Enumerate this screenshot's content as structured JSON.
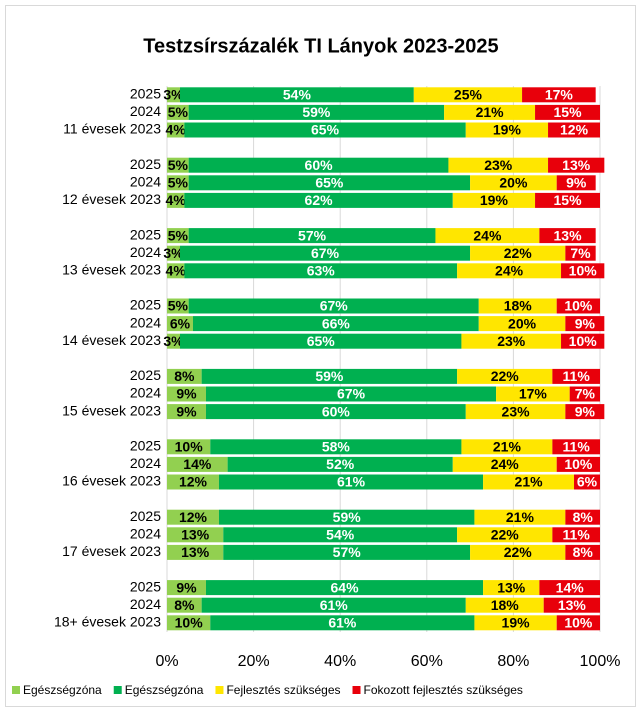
{
  "chart_data": {
    "type": "bar",
    "orientation": "horizontal",
    "stacked": true,
    "title": "Testzsírszázalék TI Lányok 2023-2025",
    "categories": [
      "2025",
      "2024",
      "11 évesek 2023",
      "2025",
      "2024",
      "12 évesek 2023",
      "2025",
      "2024",
      "13 évesek 2023",
      "2025",
      "2024",
      "14 évesek 2023",
      "2025",
      "2024",
      "15 évesek 2023",
      "2025",
      "2024",
      "16 évesek 2023",
      "2025",
      "2024",
      "17 évesek 2023",
      "2025",
      "2024",
      "18+ évesek 2023"
    ],
    "series": [
      {
        "name": "Egészségzóna",
        "color": "#92d050",
        "values": [
          3,
          5,
          4,
          5,
          5,
          4,
          5,
          3,
          4,
          5,
          6,
          3,
          8,
          9,
          9,
          10,
          14,
          12,
          12,
          13,
          13,
          9,
          8,
          10
        ],
        "value_labels": [
          "3%",
          "5%",
          "4%",
          "5%",
          "5%",
          "4%",
          "5%",
          "3%",
          "4%",
          "5%",
          "6%",
          "3%",
          "8%",
          "9%",
          "9%",
          "10%",
          "14%",
          "12%",
          "12%",
          "13%",
          "13%",
          "9%",
          "8%",
          "10%"
        ]
      },
      {
        "name": "Egészségzóna",
        "color": "#00b050",
        "values": [
          54,
          59,
          65,
          60,
          65,
          62,
          57,
          67,
          63,
          67,
          66,
          65,
          59,
          67,
          60,
          58,
          52,
          61,
          59,
          54,
          57,
          64,
          61,
          61
        ],
        "value_labels": [
          "54%",
          "59%",
          "65%",
          "60%",
          "65%",
          "62%",
          "57%",
          "67%",
          "63%",
          "67%",
          "66%",
          "65%",
          "59%",
          "67%",
          "60%",
          "58%",
          "52%",
          "61%",
          "59%",
          "54%",
          "57%",
          "64%",
          "61%",
          "61%"
        ]
      },
      {
        "name": "Fejlesztés szükséges",
        "color": "#ffe600",
        "values": [
          25,
          21,
          19,
          23,
          20,
          19,
          24,
          22,
          24,
          18,
          20,
          23,
          22,
          17,
          23,
          21,
          24,
          21,
          21,
          22,
          22,
          13,
          18,
          19
        ],
        "value_labels": [
          "25%",
          "21%",
          "19%",
          "23%",
          "20%",
          "19%",
          "24%",
          "22%",
          "24%",
          "18%",
          "20%",
          "23%",
          "22%",
          "17%",
          "23%",
          "21%",
          "24%",
          "21%",
          "21%",
          "22%",
          "22%",
          "13%",
          "18%",
          "19%"
        ]
      },
      {
        "name": "Fokozott fejlesztés szükséges",
        "color": "#e8000b",
        "values": [
          17,
          15,
          12,
          13,
          9,
          15,
          13,
          7,
          10,
          10,
          9,
          10,
          11,
          7,
          9,
          11,
          10,
          6,
          8,
          11,
          8,
          14,
          13,
          10
        ],
        "value_labels": [
          "17%",
          "15%",
          "12%",
          "13%",
          "9%",
          "15%",
          "13%",
          "7%",
          "10%",
          "10%",
          "9%",
          "10%",
          "11%",
          "7%",
          "9%",
          "11%",
          "10%",
          "6%",
          "8%",
          "11%",
          "8%",
          "14%",
          "13%",
          "10%"
        ]
      }
    ],
    "xlim": [
      0,
      100
    ],
    "xticks": [
      {
        "value": 0,
        "label": "0%"
      },
      {
        "value": 20,
        "label": "20%"
      },
      {
        "value": 40,
        "label": "40%"
      },
      {
        "value": 60,
        "label": "60%"
      },
      {
        "value": 80,
        "label": "80%"
      },
      {
        "value": 100,
        "label": "100%"
      }
    ],
    "grid": true,
    "legend": "bottom"
  }
}
